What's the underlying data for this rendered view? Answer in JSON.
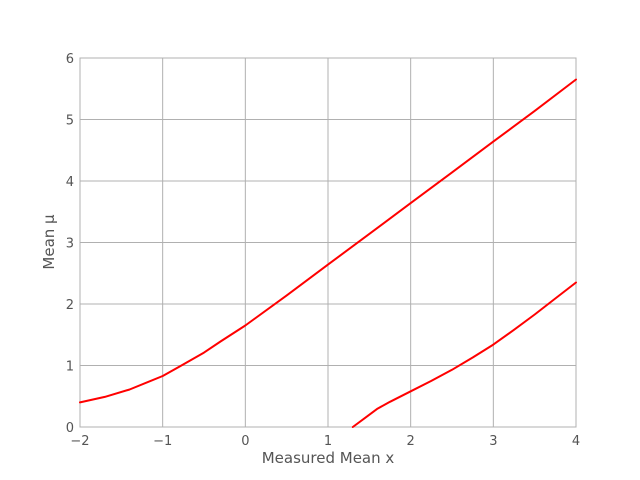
{
  "chart_data": {
    "type": "line",
    "title": "",
    "xlabel": "Measured Mean x",
    "ylabel": "Mean μ",
    "xlim": [
      -2,
      4
    ],
    "ylim": [
      0,
      6
    ],
    "xticks": [
      -2,
      -1,
      0,
      1,
      2,
      3,
      4
    ],
    "xtick_labels": [
      "−2",
      "−1",
      "0",
      "1",
      "2",
      "3",
      "4"
    ],
    "yticks": [
      0,
      1,
      2,
      3,
      4,
      5,
      6
    ],
    "ytick_labels": [
      "0",
      "1",
      "2",
      "3",
      "4",
      "5",
      "6"
    ],
    "grid": true,
    "series": [
      {
        "color": "#ff0000",
        "x": [
          -2.0,
          -1.7,
          -1.4,
          -1.0,
          -0.8,
          -0.5,
          -0.3,
          0.0,
          0.5,
          1.0,
          1.5,
          2.0,
          2.5,
          3.0,
          3.5,
          4.0
        ],
        "y": [
          0.4,
          0.49,
          0.61,
          0.83,
          0.98,
          1.21,
          1.39,
          1.65,
          2.14,
          2.64,
          3.14,
          3.64,
          4.14,
          4.64,
          5.14,
          5.65
        ]
      },
      {
        "color": "#ff0000",
        "x": [
          1.3,
          1.45,
          1.6,
          1.75,
          2.0,
          2.25,
          2.5,
          2.75,
          3.0,
          3.25,
          3.5,
          3.75,
          4.0
        ],
        "y": [
          0.0,
          0.15,
          0.3,
          0.41,
          0.58,
          0.75,
          0.93,
          1.13,
          1.34,
          1.58,
          1.83,
          2.09,
          2.35
        ]
      }
    ]
  }
}
